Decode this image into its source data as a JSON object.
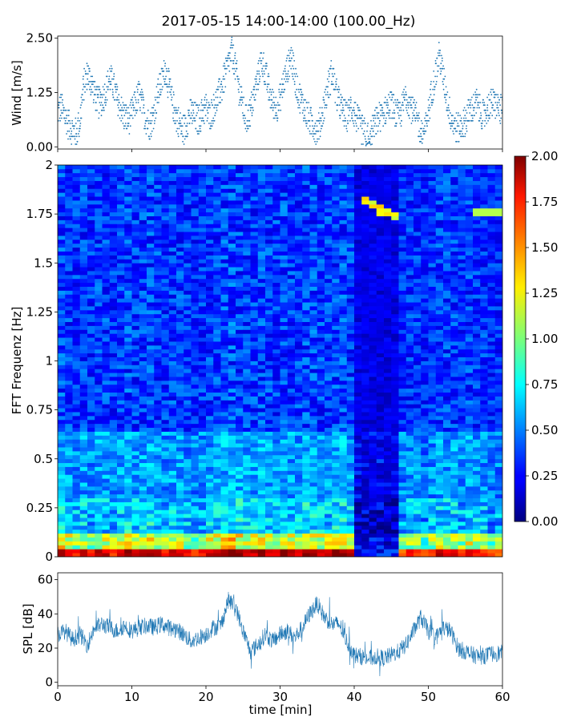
{
  "figure": {
    "title": "2017-05-15 14:00-14:00 (100.00_Hz)"
  },
  "chart_data": [
    {
      "id": "wind",
      "type": "scatter",
      "title": "",
      "xlabel": "",
      "ylabel": "Wind [m/s]",
      "xlim": [
        0,
        60
      ],
      "ylim": [
        -0.05,
        2.55
      ],
      "yticks": [
        "0.00",
        "1.25",
        "2.50"
      ],
      "ytick_values": [
        0,
        1.25,
        2.5
      ],
      "color": "#1f77b4",
      "x": [
        0.0,
        0.5,
        1.0,
        1.5,
        2.0,
        2.5,
        3.0,
        3.5,
        4.0,
        4.5,
        5.0,
        5.5,
        6.0,
        6.5,
        7.0,
        7.5,
        8.0,
        8.5,
        9.0,
        9.5,
        10.0,
        10.5,
        11.0,
        11.5,
        12.0,
        12.5,
        13.0,
        13.5,
        14.0,
        14.5,
        15.0,
        15.5,
        16.0,
        16.5,
        17.0,
        17.5,
        18.0,
        18.5,
        19.0,
        19.5,
        20.0,
        20.5,
        21.0,
        21.5,
        22.0,
        22.5,
        23.0,
        23.5,
        24.0,
        24.5,
        25.0,
        25.5,
        26.0,
        26.5,
        27.0,
        27.5,
        28.0,
        28.5,
        29.0,
        29.5,
        30.0,
        30.5,
        31.0,
        31.5,
        32.0,
        32.5,
        33.0,
        33.5,
        34.0,
        34.5,
        35.0,
        35.5,
        36.0,
        36.5,
        37.0,
        37.5,
        38.0,
        38.5,
        39.0,
        39.5,
        40.0,
        40.5,
        41.0,
        41.5,
        42.0,
        42.5,
        43.0,
        43.5,
        44.0,
        44.5,
        45.0,
        45.5,
        46.0,
        46.5,
        47.0,
        47.5,
        48.0,
        48.5,
        49.0,
        49.5,
        50.0,
        50.5,
        51.0,
        51.5,
        52.0,
        52.5,
        53.0,
        53.5,
        54.0,
        54.5,
        55.0,
        55.5,
        56.0,
        56.5,
        57.0,
        57.5,
        58.0,
        58.5,
        59.0,
        59.5,
        60.0
      ],
      "y": [
        0.8,
        0.9,
        0.7,
        0.5,
        0.4,
        0.3,
        0.6,
        1.4,
        1.7,
        1.5,
        1.2,
        1.0,
        1.1,
        1.3,
        1.6,
        1.4,
        1.1,
        0.9,
        0.7,
        0.6,
        0.8,
        1.0,
        1.2,
        0.9,
        0.6,
        0.5,
        0.8,
        1.2,
        1.5,
        1.8,
        1.4,
        1.0,
        0.7,
        0.5,
        0.4,
        0.6,
        0.8,
        0.7,
        0.6,
        0.8,
        0.9,
        0.7,
        0.9,
        1.1,
        1.3,
        1.6,
        1.9,
        2.2,
        1.8,
        1.3,
        0.9,
        0.6,
        0.8,
        1.2,
        1.6,
        2.0,
        1.7,
        1.3,
        1.0,
        0.9,
        1.1,
        1.5,
        1.8,
        2.1,
        1.6,
        1.2,
        1.0,
        0.8,
        0.6,
        0.5,
        0.4,
        0.6,
        1.0,
        1.4,
        1.7,
        1.3,
        1.0,
        0.8,
        0.7,
        0.9,
        0.8,
        0.6,
        0.4,
        0.3,
        0.2,
        0.4,
        0.6,
        0.7,
        0.8,
        0.9,
        1.0,
        0.8,
        0.7,
        0.9,
        1.2,
        1.0,
        0.8,
        0.6,
        0.4,
        0.3,
        0.8,
        1.3,
        1.7,
        2.1,
        1.6,
        1.1,
        0.7,
        0.5,
        0.4,
        0.5,
        0.6,
        0.8,
        0.9,
        1.0,
        0.8,
        0.7,
        0.9,
        1.0,
        1.0,
        0.9,
        0.8
      ],
      "y_spread": 0.35
    },
    {
      "id": "spectrogram",
      "type": "heatmap",
      "title": "",
      "xlabel": "",
      "ylabel": "FFT Frequenz [Hz]",
      "xlim": [
        0,
        60
      ],
      "ylim": [
        0,
        2
      ],
      "yticks": [
        "0",
        "0.25",
        "0.5",
        "0.75",
        "1",
        "1.25",
        "1.5",
        "1.75",
        "2"
      ],
      "ytick_values": [
        0,
        0.25,
        0.5,
        0.75,
        1,
        1.25,
        1.5,
        1.75,
        2
      ],
      "colorbar": {
        "colormap": "jet",
        "vmin": 0,
        "vmax": 2,
        "ticks": [
          "0.00",
          "0.25",
          "0.50",
          "0.75",
          "1.00",
          "1.25",
          "1.50",
          "1.75",
          "2.00"
        ],
        "tick_values": [
          0,
          0.25,
          0.5,
          0.75,
          1,
          1.25,
          1.5,
          1.75,
          2
        ]
      },
      "time_bins_min": [
        0,
        1,
        2,
        3,
        4,
        5,
        6,
        7,
        8,
        9,
        10,
        11,
        12,
        13,
        14,
        15,
        16,
        17,
        18,
        19,
        20,
        21,
        22,
        23,
        24,
        25,
        26,
        27,
        28,
        29,
        30,
        31,
        32,
        33,
        34,
        35,
        36,
        37,
        38,
        39,
        40,
        41,
        42,
        43,
        44,
        45,
        46,
        47,
        48,
        49,
        50,
        51,
        52,
        53,
        54,
        55,
        56,
        57,
        58,
        59
      ],
      "low_freq_intensity": [
        1.3,
        1.2,
        1.1,
        1.2,
        1.1,
        1.2,
        1.2,
        1.1,
        1.2,
        1.3,
        1.2,
        1.2,
        1.3,
        1.2,
        1.1,
        1.2,
        1.2,
        1.1,
        1.0,
        1.1,
        1.2,
        1.2,
        1.3,
        1.4,
        1.3,
        1.2,
        1.2,
        1.3,
        1.2,
        1.2,
        1.3,
        1.2,
        1.2,
        1.3,
        1.3,
        1.2,
        1.2,
        1.3,
        1.3,
        1.2,
        0.25,
        0.25,
        0.3,
        0.25,
        0.3,
        0.3,
        1.0,
        1.1,
        1.1,
        1.0,
        1.1,
        1.2,
        1.2,
        1.2,
        1.1,
        1.2,
        1.1,
        1.1,
        1.0,
        1.0
      ],
      "feature_line": {
        "x": [
          41.0,
          42.5,
          44.0,
          46.0
        ],
        "y": [
          1.83,
          1.8,
          1.76,
          1.74
        ],
        "value": 1.1
      }
    },
    {
      "id": "spl",
      "type": "line",
      "title": "",
      "xlabel": "time [min]",
      "ylabel": "SPL [dB]",
      "xlim": [
        0,
        60
      ],
      "ylim": [
        -2,
        64
      ],
      "yticks": [
        "0",
        "20",
        "40",
        "60"
      ],
      "ytick_values": [
        0,
        20,
        40,
        60
      ],
      "xticks": [
        "0",
        "10",
        "20",
        "30",
        "40",
        "50",
        "60"
      ],
      "xtick_values": [
        0,
        10,
        20,
        30,
        40,
        50,
        60
      ],
      "color": "#1f77b4",
      "x": [
        0,
        1,
        2,
        3,
        4,
        5,
        6,
        7,
        8,
        9,
        10,
        11,
        12,
        13,
        14,
        15,
        16,
        17,
        18,
        19,
        20,
        21,
        22,
        23,
        24,
        25,
        26,
        27,
        28,
        29,
        30,
        31,
        32,
        33,
        34,
        35,
        36,
        37,
        38,
        39,
        40,
        41,
        42,
        43,
        44,
        45,
        46,
        47,
        48,
        49,
        50,
        51,
        52,
        53,
        54,
        55,
        56,
        57,
        58,
        59,
        60
      ],
      "y": [
        28,
        30,
        25,
        28,
        22,
        32,
        34,
        32,
        30,
        33,
        30,
        32,
        33,
        32,
        34,
        32,
        31,
        28,
        24,
        26,
        28,
        32,
        33,
        48,
        44,
        30,
        18,
        22,
        28,
        24,
        28,
        30,
        26,
        32,
        40,
        46,
        38,
        34,
        34,
        24,
        16,
        15,
        14,
        15,
        14,
        16,
        18,
        22,
        30,
        38,
        30,
        26,
        32,
        30,
        20,
        18,
        16,
        15,
        16,
        17,
        17
      ],
      "noise_amplitude": 5
    }
  ]
}
